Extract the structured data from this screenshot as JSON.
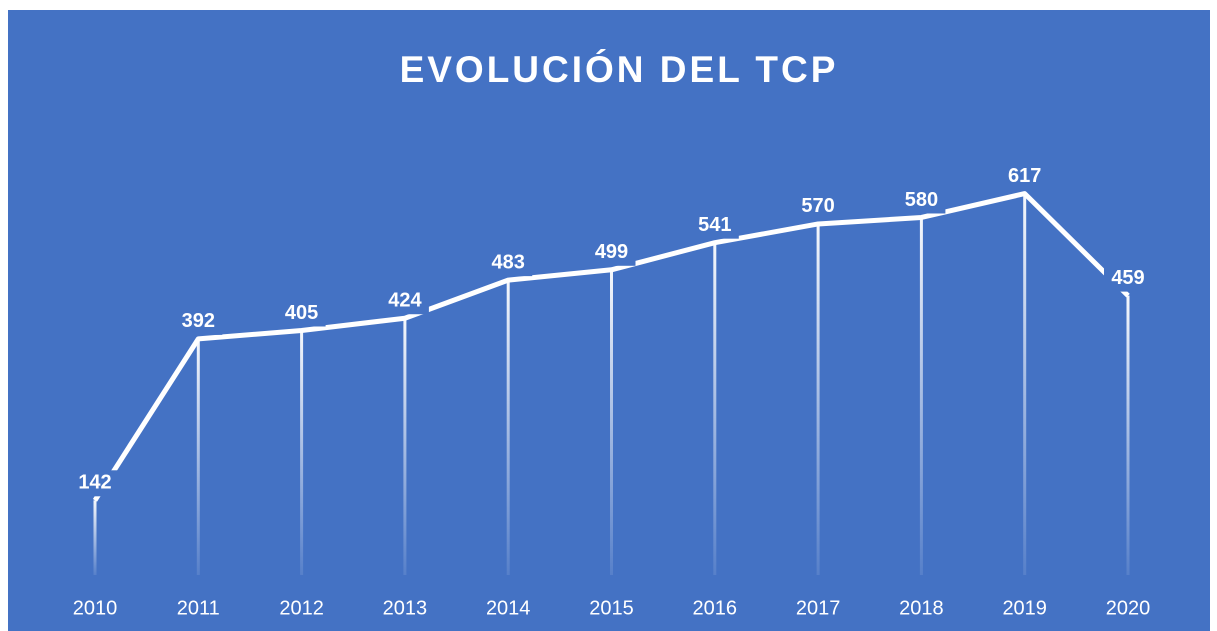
{
  "chart_data": {
    "type": "line",
    "title": "EVOLUCIÓN DEL TCP",
    "categories": [
      "2010",
      "2011",
      "2012",
      "2013",
      "2014",
      "2015",
      "2016",
      "2017",
      "2018",
      "2019",
      "2020"
    ],
    "values": [
      142,
      392,
      405,
      424,
      483,
      499,
      541,
      570,
      580,
      617,
      459
    ],
    "color": "#ffffff",
    "background": "#4472c4",
    "ylim": [
      0,
      700
    ],
    "drop_lines": true
  }
}
